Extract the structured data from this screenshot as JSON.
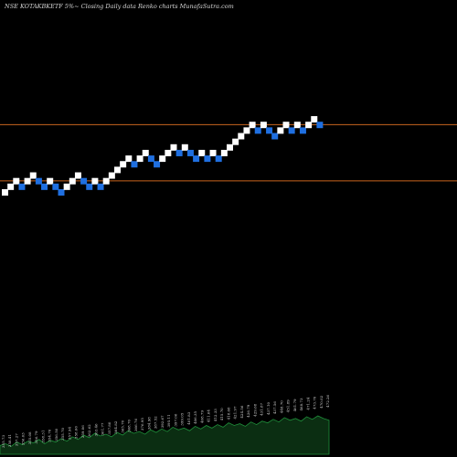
{
  "chart_data": {
    "type": "renko",
    "title": "NSE KOTAKBKETF 5%~ Closing Daily data Renko charts MunafaSutra.com",
    "colors": {
      "background": "#000000",
      "up_brick": "#ffffff",
      "down_brick": "#1f6fe0",
      "reference_line": "#c8641e",
      "volume_fill": "#0b2e12",
      "volume_stroke": "#1f8f3a",
      "text": "#d8d8d8"
    },
    "bricks": [
      {
        "dir": "up",
        "level": 0
      },
      {
        "dir": "up",
        "level": 1
      },
      {
        "dir": "up",
        "level": 2
      },
      {
        "dir": "down",
        "level": 1
      },
      {
        "dir": "up",
        "level": 2
      },
      {
        "dir": "up",
        "level": 3
      },
      {
        "dir": "down",
        "level": 2
      },
      {
        "dir": "down",
        "level": 1
      },
      {
        "dir": "up",
        "level": 2
      },
      {
        "dir": "down",
        "level": 1
      },
      {
        "dir": "down",
        "level": 0
      },
      {
        "dir": "up",
        "level": 1
      },
      {
        "dir": "up",
        "level": 2
      },
      {
        "dir": "up",
        "level": 3
      },
      {
        "dir": "down",
        "level": 2
      },
      {
        "dir": "down",
        "level": 1
      },
      {
        "dir": "up",
        "level": 2
      },
      {
        "dir": "down",
        "level": 1
      },
      {
        "dir": "up",
        "level": 2
      },
      {
        "dir": "up",
        "level": 3
      },
      {
        "dir": "up",
        "level": 4
      },
      {
        "dir": "up",
        "level": 5
      },
      {
        "dir": "up",
        "level": 6
      },
      {
        "dir": "down",
        "level": 5
      },
      {
        "dir": "up",
        "level": 6
      },
      {
        "dir": "up",
        "level": 7
      },
      {
        "dir": "down",
        "level": 6
      },
      {
        "dir": "down",
        "level": 5
      },
      {
        "dir": "up",
        "level": 6
      },
      {
        "dir": "up",
        "level": 7
      },
      {
        "dir": "up",
        "level": 8
      },
      {
        "dir": "down",
        "level": 7
      },
      {
        "dir": "up",
        "level": 8
      },
      {
        "dir": "down",
        "level": 7
      },
      {
        "dir": "down",
        "level": 6
      },
      {
        "dir": "up",
        "level": 7
      },
      {
        "dir": "down",
        "level": 6
      },
      {
        "dir": "up",
        "level": 7
      },
      {
        "dir": "down",
        "level": 6
      },
      {
        "dir": "up",
        "level": 7
      },
      {
        "dir": "up",
        "level": 8
      },
      {
        "dir": "up",
        "level": 9
      },
      {
        "dir": "up",
        "level": 10
      },
      {
        "dir": "up",
        "level": 11
      },
      {
        "dir": "up",
        "level": 12
      },
      {
        "dir": "down",
        "level": 11
      },
      {
        "dir": "up",
        "level": 12
      },
      {
        "dir": "down",
        "level": 11
      },
      {
        "dir": "down",
        "level": 10
      },
      {
        "dir": "up",
        "level": 11
      },
      {
        "dir": "up",
        "level": 12
      },
      {
        "dir": "down",
        "level": 11
      },
      {
        "dir": "up",
        "level": 12
      },
      {
        "dir": "down",
        "level": 11
      },
      {
        "dir": "up",
        "level": 12
      },
      {
        "dir": "up",
        "level": 13
      },
      {
        "dir": "down",
        "level": 12
      }
    ],
    "reference_lines": [
      {
        "level": 11
      },
      {
        "level": 1
      }
    ],
    "volume": [
      10,
      12,
      9,
      14,
      11,
      15,
      13,
      17,
      12,
      16,
      14,
      18,
      15,
      20,
      17,
      22,
      19,
      24,
      21,
      23,
      20,
      25,
      22,
      27,
      24,
      26,
      23,
      28,
      25,
      29,
      26,
      31,
      28,
      30,
      27,
      32,
      29,
      33,
      30,
      34,
      31,
      36,
      33,
      35,
      32,
      37,
      34,
      38,
      36,
      40,
      37,
      42,
      39,
      41,
      38,
      43,
      40,
      44,
      41,
      39
    ],
    "volume_labels": [
      "355.73",
      "358.41",
      "357.27",
      "356.63",
      "355.08",
      "356.79",
      "358.31",
      "354.76",
      "356.50",
      "355.70",
      "357.94",
      "358.66",
      "359.06",
      "362.62",
      "363.46",
      "361.77",
      "357.80",
      "364.82",
      "365.70",
      "368.70",
      "366.76",
      "376.95",
      "384.98",
      "387.52",
      "392.67",
      "395.11",
      "397.06",
      "399.05",
      "401.83",
      "406.35",
      "408.79",
      "411.64",
      "412.33",
      "415.70",
      "418.68",
      "421.97",
      "424.56",
      "426.79",
      "429.68",
      "431.87",
      "437.10",
      "437.56",
      "448.70",
      "451.89",
      "461.79",
      "468.73",
      "471.24",
      "473.70",
      "470.02",
      "472.26"
    ]
  }
}
